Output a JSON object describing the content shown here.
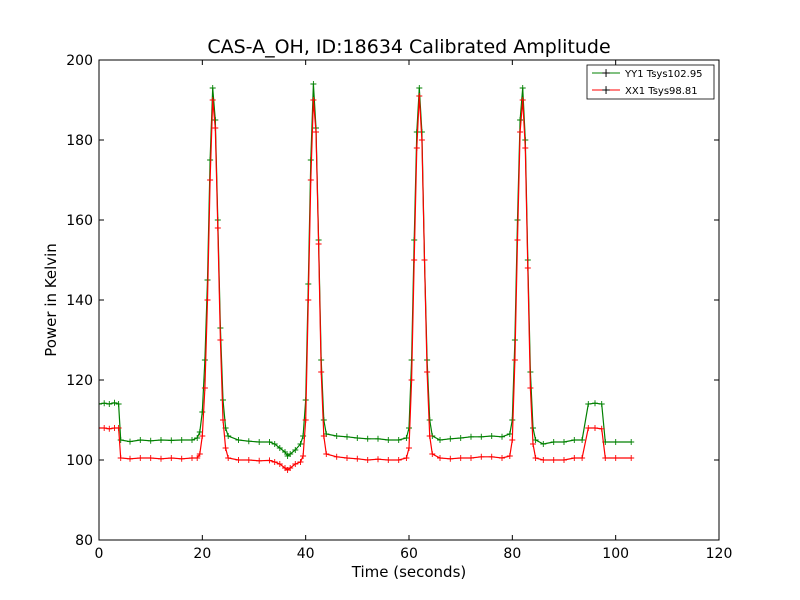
{
  "chart_data": {
    "type": "line",
    "title": "CAS-A_OH, ID:18634 Calibrated Amplitude",
    "xlabel": "Time (seconds)",
    "ylabel": "Power in Kelvin",
    "xlim": [
      0,
      120
    ],
    "ylim": [
      80,
      200
    ],
    "x_ticks": [
      "0",
      "20",
      "40",
      "60",
      "80",
      "100",
      "120"
    ],
    "y_ticks": [
      "80",
      "100",
      "120",
      "140",
      "160",
      "180",
      "200"
    ],
    "grid": false,
    "legend_position": "top-right",
    "series": [
      {
        "name": "YY1 Tsys102.95",
        "color": "#008000",
        "points": [
          [
            0,
            114
          ],
          [
            1,
            114.2
          ],
          [
            2,
            114
          ],
          [
            3,
            114.3
          ],
          [
            3.8,
            114
          ],
          [
            4.2,
            105
          ],
          [
            6,
            104.6
          ],
          [
            8,
            105
          ],
          [
            10,
            104.8
          ],
          [
            12,
            105
          ],
          [
            14,
            104.9
          ],
          [
            16,
            105
          ],
          [
            18,
            105
          ],
          [
            19,
            105.5
          ],
          [
            19.5,
            107
          ],
          [
            20,
            112
          ],
          [
            20.5,
            125
          ],
          [
            21,
            145
          ],
          [
            21.5,
            175
          ],
          [
            22,
            193
          ],
          [
            22.5,
            185
          ],
          [
            23,
            160
          ],
          [
            23.5,
            133
          ],
          [
            24,
            115
          ],
          [
            24.5,
            108
          ],
          [
            25,
            106
          ],
          [
            27,
            105
          ],
          [
            29,
            104.7
          ],
          [
            31,
            104.5
          ],
          [
            33,
            104.5
          ],
          [
            34,
            104
          ],
          [
            35,
            103
          ],
          [
            36,
            102
          ],
          [
            36.5,
            101
          ],
          [
            37,
            101.5
          ],
          [
            38,
            102.5
          ],
          [
            39,
            104
          ],
          [
            39.5,
            106
          ],
          [
            40,
            115
          ],
          [
            40.5,
            144
          ],
          [
            41,
            175
          ],
          [
            41.5,
            194
          ],
          [
            42,
            183
          ],
          [
            42.5,
            155
          ],
          [
            43,
            125
          ],
          [
            43.5,
            110
          ],
          [
            44,
            106.5
          ],
          [
            46,
            106
          ],
          [
            48,
            105.8
          ],
          [
            50,
            105.5
          ],
          [
            52,
            105.3
          ],
          [
            54,
            105.3
          ],
          [
            56,
            105
          ],
          [
            58,
            105
          ],
          [
            59.5,
            105.5
          ],
          [
            60,
            108
          ],
          [
            60.5,
            125
          ],
          [
            61,
            155
          ],
          [
            61.5,
            182
          ],
          [
            62,
            193
          ],
          [
            62.5,
            182
          ],
          [
            63,
            150
          ],
          [
            63.5,
            125
          ],
          [
            64,
            110
          ],
          [
            64.5,
            106
          ],
          [
            66,
            105
          ],
          [
            68,
            105.3
          ],
          [
            70,
            105.5
          ],
          [
            72,
            105.8
          ],
          [
            74,
            105.8
          ],
          [
            76,
            106
          ],
          [
            78,
            105.8
          ],
          [
            79.5,
            106.5
          ],
          [
            80,
            110
          ],
          [
            80.5,
            130
          ],
          [
            81,
            160
          ],
          [
            81.5,
            185
          ],
          [
            82,
            193
          ],
          [
            82.5,
            180
          ],
          [
            83,
            150
          ],
          [
            83.5,
            122
          ],
          [
            84,
            108
          ],
          [
            84.5,
            105
          ],
          [
            86,
            104
          ],
          [
            88,
            104.5
          ],
          [
            90,
            104.5
          ],
          [
            92,
            105
          ],
          [
            93.5,
            105
          ],
          [
            94.7,
            114
          ],
          [
            96,
            114.2
          ],
          [
            97.3,
            114
          ],
          [
            98,
            104.5
          ],
          [
            100,
            104.5
          ],
          [
            103,
            104.5
          ]
        ]
      },
      {
        "name": "XX1 Tsys98.81",
        "color": "#ff0000",
        "points": [
          [
            0,
            108
          ],
          [
            1,
            108
          ],
          [
            2,
            107.8
          ],
          [
            3,
            108
          ],
          [
            3.8,
            108
          ],
          [
            4.2,
            100.5
          ],
          [
            6,
            100.3
          ],
          [
            8,
            100.5
          ],
          [
            10,
            100.5
          ],
          [
            12,
            100.3
          ],
          [
            14,
            100.5
          ],
          [
            16,
            100.3
          ],
          [
            18,
            100.5
          ],
          [
            19,
            100.5
          ],
          [
            19.5,
            101.5
          ],
          [
            20,
            106
          ],
          [
            20.5,
            118
          ],
          [
            21,
            140
          ],
          [
            21.5,
            170
          ],
          [
            22,
            190
          ],
          [
            22.5,
            183
          ],
          [
            23,
            158
          ],
          [
            23.5,
            130
          ],
          [
            24,
            110
          ],
          [
            24.5,
            103
          ],
          [
            25,
            100.5
          ],
          [
            27,
            100
          ],
          [
            29,
            100
          ],
          [
            31,
            99.8
          ],
          [
            33,
            99.9
          ],
          [
            34,
            99.5
          ],
          [
            35,
            99
          ],
          [
            36,
            98
          ],
          [
            36.5,
            97.5
          ],
          [
            37,
            98
          ],
          [
            38,
            99
          ],
          [
            39,
            99.5
          ],
          [
            39.5,
            101
          ],
          [
            40,
            110
          ],
          [
            40.5,
            140
          ],
          [
            41,
            170
          ],
          [
            41.5,
            190
          ],
          [
            42,
            182
          ],
          [
            42.5,
            154
          ],
          [
            43,
            122
          ],
          [
            43.5,
            106
          ],
          [
            44,
            101.5
          ],
          [
            46,
            100.8
          ],
          [
            48,
            100.5
          ],
          [
            50,
            100.3
          ],
          [
            52,
            100
          ],
          [
            54,
            100.2
          ],
          [
            56,
            100
          ],
          [
            58,
            100
          ],
          [
            59.5,
            100.5
          ],
          [
            60,
            103
          ],
          [
            60.5,
            120
          ],
          [
            61,
            150
          ],
          [
            61.5,
            178
          ],
          [
            62,
            191
          ],
          [
            62.5,
            180
          ],
          [
            63,
            150
          ],
          [
            63.5,
            122
          ],
          [
            64,
            106
          ],
          [
            64.5,
            101.5
          ],
          [
            66,
            100.5
          ],
          [
            68,
            100.3
          ],
          [
            70,
            100.5
          ],
          [
            72,
            100.5
          ],
          [
            74,
            100.8
          ],
          [
            76,
            100.8
          ],
          [
            78,
            100.5
          ],
          [
            79.5,
            101
          ],
          [
            80,
            105
          ],
          [
            80.5,
            125
          ],
          [
            81,
            155
          ],
          [
            81.5,
            182
          ],
          [
            82,
            190
          ],
          [
            82.5,
            178
          ],
          [
            83,
            148
          ],
          [
            83.5,
            118
          ],
          [
            84,
            104
          ],
          [
            84.5,
            100.5
          ],
          [
            86,
            100
          ],
          [
            88,
            100
          ],
          [
            90,
            100
          ],
          [
            92,
            100.5
          ],
          [
            93.5,
            100.5
          ],
          [
            94.7,
            108
          ],
          [
            96,
            108
          ],
          [
            97.3,
            107.8
          ],
          [
            98,
            100.5
          ],
          [
            100,
            100.5
          ],
          [
            103,
            100.5
          ]
        ]
      }
    ]
  }
}
